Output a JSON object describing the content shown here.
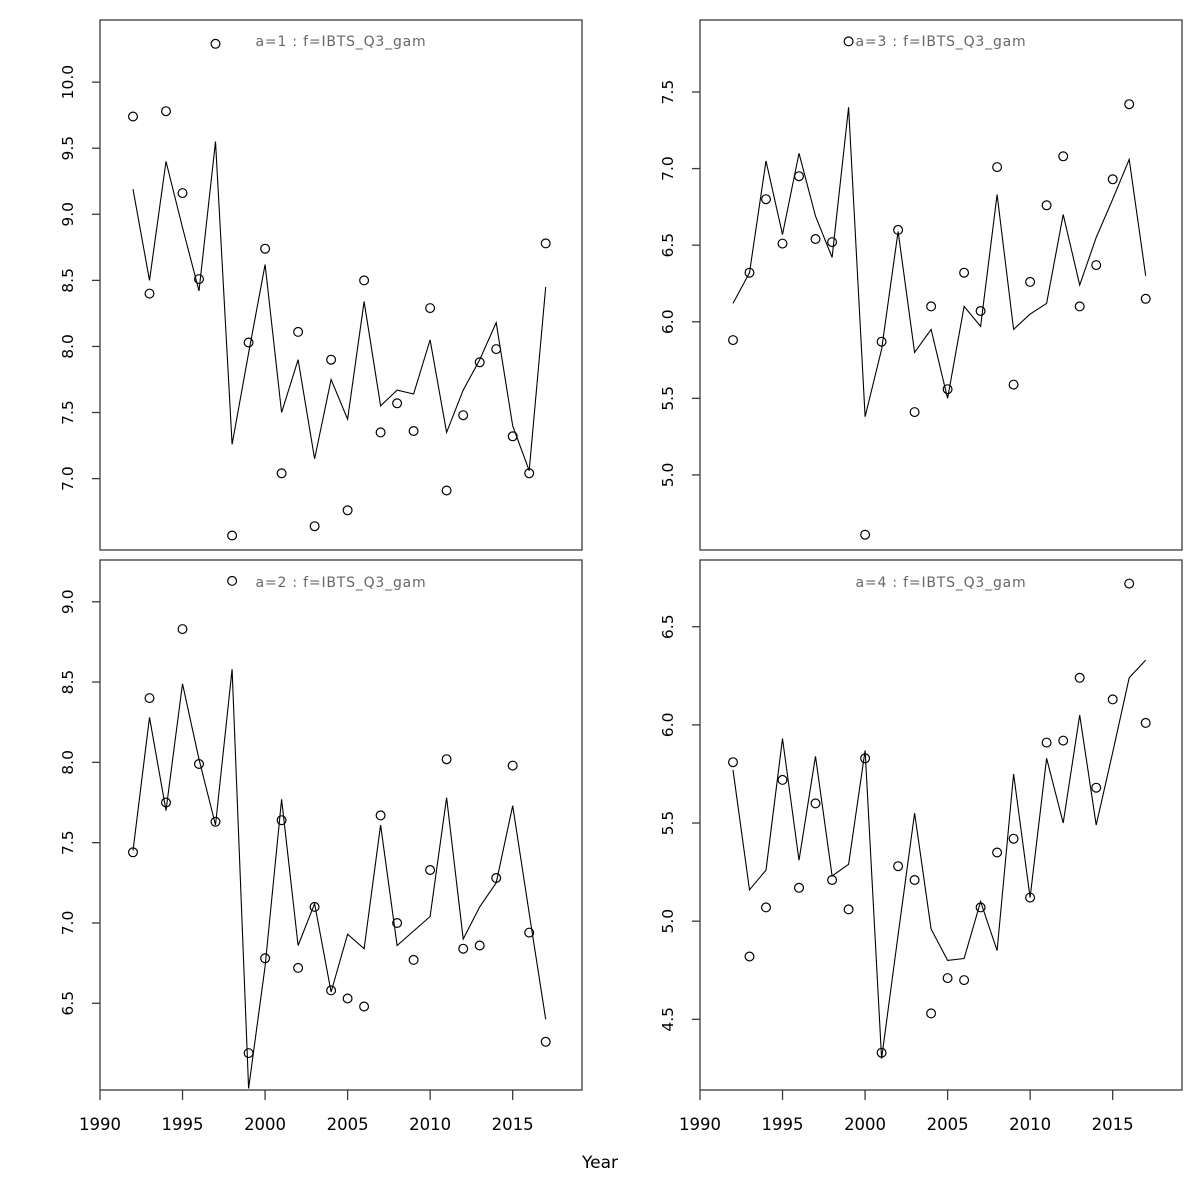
{
  "figure": {
    "xlabel": "Year",
    "background": "#ffffff",
    "colors": {
      "frame": "#3a3a3a",
      "line": "#000000",
      "point": "#000000",
      "title": "#666666",
      "tick_label": "#000000"
    }
  },
  "chart_data": [
    {
      "id": "a1",
      "type": "line",
      "title": "a=1 : f=IBTS_Q3_gam",
      "panel_label": "a=1",
      "fit_label": "f=IBTS_Q3_gam",
      "position": "top-left",
      "x": [
        1992,
        1993,
        1994,
        1995,
        1996,
        1997,
        1998,
        1999,
        2000,
        2001,
        2002,
        2003,
        2004,
        2005,
        2006,
        2007,
        2008,
        2009,
        2010,
        2011,
        2012,
        2013,
        2014,
        2015,
        2016,
        2017
      ],
      "series": [
        {
          "name": "observed",
          "style": "points",
          "values": [
            9.74,
            8.4,
            9.78,
            9.16,
            8.51,
            10.29,
            6.57,
            8.03,
            8.74,
            7.04,
            8.11,
            6.64,
            7.9,
            6.76,
            8.5,
            7.35,
            7.57,
            7.36,
            8.29,
            6.91,
            7.48,
            7.88,
            7.98,
            7.32,
            7.04,
            8.78
          ]
        },
        {
          "name": "fitted",
          "style": "line",
          "values": [
            9.19,
            8.5,
            9.4,
            8.9,
            8.42,
            9.55,
            7.26,
            7.95,
            8.62,
            7.5,
            7.9,
            7.15,
            7.75,
            7.45,
            8.34,
            7.55,
            7.67,
            7.64,
            8.05,
            7.35,
            7.67,
            7.9,
            8.18,
            7.4,
            7.06,
            8.45
          ]
        }
      ],
      "xlim": [
        1990,
        2019.2
      ],
      "ylim": [
        6.46,
        10.47
      ],
      "xticks": [
        "1990",
        "1995",
        "2000",
        "2005",
        "2010",
        "2015"
      ],
      "yticks": [
        "7.0",
        "7.5",
        "8.0",
        "8.5",
        "9.0",
        "9.5",
        "10.0"
      ],
      "show_xticklabels": false,
      "grid": false
    },
    {
      "id": "a3",
      "type": "line",
      "title": "a=3 : f=IBTS_Q3_gam",
      "panel_label": "a=3",
      "fit_label": "f=IBTS_Q3_gam",
      "position": "top-right",
      "x": [
        1992,
        1993,
        1994,
        1995,
        1996,
        1997,
        1998,
        1999,
        2000,
        2001,
        2002,
        2003,
        2004,
        2005,
        2006,
        2007,
        2008,
        2009,
        2010,
        2011,
        2012,
        2013,
        2014,
        2015,
        2016,
        2017
      ],
      "series": [
        {
          "name": "observed",
          "style": "points",
          "values": [
            5.88,
            6.32,
            6.8,
            6.51,
            6.95,
            6.54,
            6.52,
            7.83,
            4.61,
            5.87,
            6.6,
            5.41,
            6.1,
            5.56,
            6.32,
            6.07,
            7.01,
            5.59,
            6.26,
            6.76,
            7.08,
            6.1,
            6.37,
            6.93,
            7.42,
            6.15
          ]
        },
        {
          "name": "fitted",
          "style": "line",
          "values": [
            6.12,
            6.32,
            7.05,
            6.57,
            7.1,
            6.69,
            6.42,
            7.4,
            5.38,
            5.82,
            6.59,
            5.8,
            5.95,
            5.5,
            6.1,
            5.97,
            6.83,
            5.95,
            6.05,
            6.12,
            6.7,
            6.24,
            6.55,
            6.8,
            7.06,
            6.3
          ]
        }
      ],
      "xlim": [
        1990,
        2019.2
      ],
      "ylim": [
        4.51,
        7.97
      ],
      "xticks": [
        "1990",
        "1995",
        "2000",
        "2005",
        "2010",
        "2015"
      ],
      "yticks": [
        "5.0",
        "5.5",
        "6.0",
        "6.5",
        "7.0",
        "7.5"
      ],
      "show_xticklabels": false,
      "grid": false
    },
    {
      "id": "a2",
      "type": "line",
      "title": "a=2 : f=IBTS_Q3_gam",
      "panel_label": "a=2",
      "fit_label": "f=IBTS_Q3_gam",
      "position": "bottom-left",
      "x": [
        1992,
        1993,
        1994,
        1995,
        1996,
        1997,
        1998,
        1999,
        2000,
        2001,
        2002,
        2003,
        2004,
        2005,
        2006,
        2007,
        2008,
        2009,
        2010,
        2011,
        2012,
        2013,
        2014,
        2015,
        2016,
        2017
      ],
      "series": [
        {
          "name": "observed",
          "style": "points",
          "values": [
            7.44,
            8.4,
            7.75,
            8.83,
            7.99,
            7.63,
            9.13,
            6.19,
            6.78,
            7.64,
            6.72,
            7.1,
            6.58,
            6.53,
            6.48,
            7.67,
            7.0,
            6.77,
            7.33,
            8.02,
            6.84,
            6.86,
            7.28,
            7.98,
            6.94,
            6.26
          ]
        },
        {
          "name": "fitted",
          "style": "line",
          "values": [
            7.45,
            8.28,
            7.7,
            8.49,
            8.02,
            7.61,
            8.58,
            5.97,
            6.73,
            7.77,
            6.86,
            7.12,
            6.57,
            6.93,
            6.84,
            7.61,
            6.86,
            6.95,
            7.04,
            7.78,
            6.9,
            7.1,
            7.25,
            7.73,
            7.06,
            6.4
          ]
        }
      ],
      "xlim": [
        1990,
        2019.2
      ],
      "ylim": [
        5.96,
        9.26
      ],
      "xticks": [
        "1990",
        "1995",
        "2000",
        "2005",
        "2010",
        "2015"
      ],
      "yticks": [
        "6.5",
        "7.0",
        "7.5",
        "8.0",
        "8.5",
        "9.0"
      ],
      "show_xticklabels": true,
      "grid": false
    },
    {
      "id": "a4",
      "type": "line",
      "title": "a=4 : f=IBTS_Q3_gam",
      "panel_label": "a=4",
      "fit_label": "f=IBTS_Q3_gam",
      "position": "bottom-right",
      "x": [
        1992,
        1993,
        1994,
        1995,
        1996,
        1997,
        1998,
        1999,
        2000,
        2001,
        2002,
        2003,
        2004,
        2005,
        2006,
        2007,
        2008,
        2009,
        2010,
        2011,
        2012,
        2013,
        2014,
        2015,
        2016,
        2017
      ],
      "series": [
        {
          "name": "observed",
          "style": "points",
          "values": [
            5.81,
            4.82,
            5.07,
            5.72,
            5.17,
            5.6,
            5.21,
            5.06,
            5.83,
            4.33,
            5.28,
            5.21,
            4.53,
            4.71,
            4.7,
            5.07,
            5.35,
            5.42,
            5.12,
            5.91,
            5.92,
            6.24,
            5.68,
            6.13,
            6.72,
            6.01
          ]
        },
        {
          "name": "fitted",
          "style": "line",
          "values": [
            5.77,
            5.16,
            5.26,
            5.93,
            5.31,
            5.84,
            5.23,
            5.29,
            5.87,
            4.3,
            4.93,
            5.55,
            4.96,
            4.8,
            4.81,
            5.1,
            4.85,
            5.75,
            5.12,
            5.83,
            5.5,
            6.05,
            5.49,
            5.86,
            6.24,
            6.33
          ]
        }
      ],
      "xlim": [
        1990,
        2019.2
      ],
      "ylim": [
        4.14,
        6.84
      ],
      "xticks": [
        "1990",
        "1995",
        "2000",
        "2005",
        "2010",
        "2015"
      ],
      "yticks": [
        "4.5",
        "5.0",
        "5.5",
        "6.0",
        "6.5"
      ],
      "show_xticklabels": true,
      "grid": false
    }
  ]
}
